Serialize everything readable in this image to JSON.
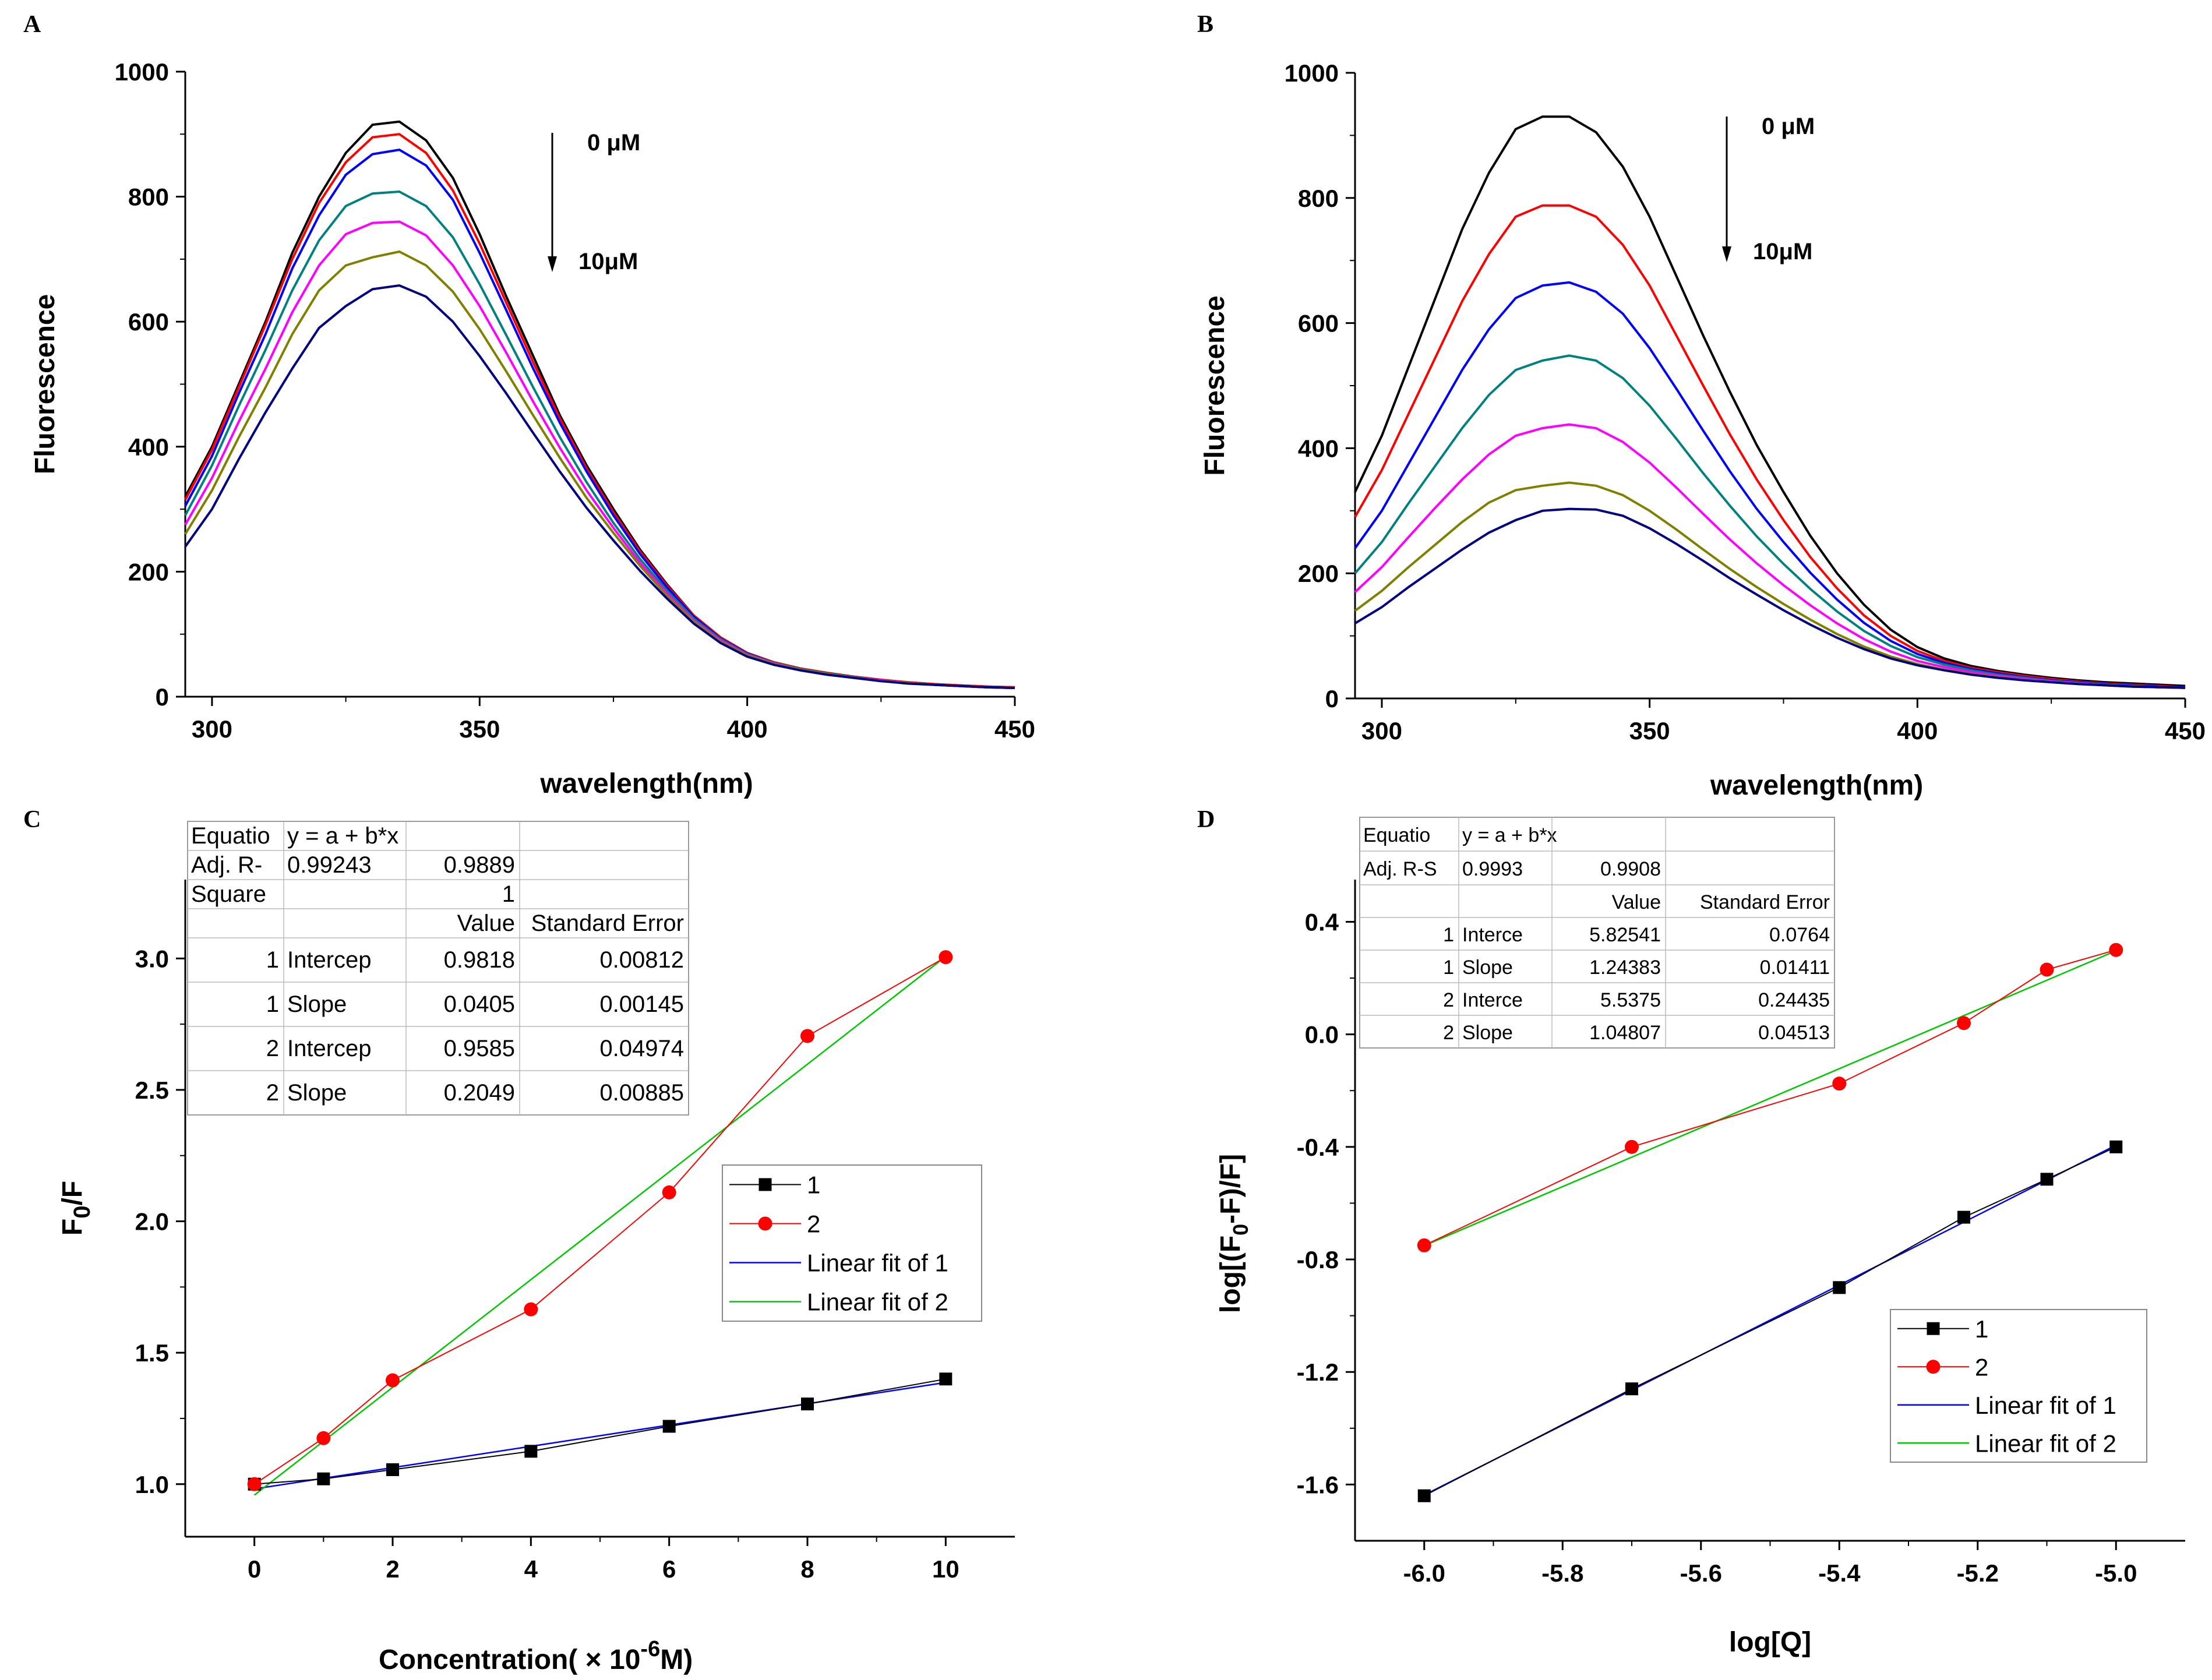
{
  "chart_data": [
    {
      "panel": "A",
      "type": "line",
      "xlabel": "wavelength(nm)",
      "ylabel": "Fluorescence",
      "xlim": [
        295,
        450
      ],
      "ylim": [
        0,
        1000
      ],
      "x_ticks": [
        "300",
        "350",
        "400",
        "450"
      ],
      "y_ticks": [
        "0",
        "200",
        "400",
        "600",
        "800",
        "1000"
      ],
      "annotations": [
        "0 μM",
        "10μM"
      ],
      "x": [
        295,
        300,
        305,
        310,
        315,
        320,
        325,
        330,
        335,
        340,
        345,
        350,
        355,
        360,
        365,
        370,
        375,
        380,
        385,
        390,
        395,
        400,
        405,
        410,
        415,
        420,
        425,
        430,
        435,
        440,
        445,
        450
      ],
      "series": [
        {
          "color": "#000000",
          "values": [
            320,
            400,
            500,
            600,
            710,
            800,
            870,
            915,
            920,
            890,
            830,
            740,
            640,
            545,
            450,
            370,
            300,
            235,
            180,
            130,
            95,
            70,
            55,
            45,
            38,
            32,
            27,
            23,
            20,
            18,
            16,
            15
          ]
        },
        {
          "color": "#ff0000",
          "values": [
            315,
            395,
            495,
            595,
            700,
            790,
            855,
            895,
            900,
            870,
            810,
            725,
            630,
            535,
            445,
            365,
            295,
            232,
            178,
            130,
            95,
            70,
            55,
            45,
            38,
            32,
            27,
            23,
            20,
            18,
            16,
            15
          ]
        },
        {
          "color": "#0000ff",
          "values": [
            305,
            385,
            485,
            580,
            685,
            770,
            835,
            868,
            875,
            850,
            795,
            710,
            618,
            525,
            438,
            360,
            290,
            228,
            175,
            128,
            93,
            69,
            54,
            44,
            37,
            31,
            26,
            22,
            19,
            17,
            15,
            14
          ]
        },
        {
          "color": "#008080",
          "values": [
            290,
            370,
            465,
            555,
            650,
            730,
            785,
            805,
            808,
            785,
            735,
            660,
            578,
            495,
            415,
            343,
            278,
            220,
            170,
            125,
            92,
            68,
            54,
            44,
            37,
            31,
            26,
            22,
            19,
            17,
            15,
            14
          ]
        },
        {
          "color": "#ff00ff",
          "values": [
            275,
            350,
            440,
            525,
            615,
            690,
            740,
            758,
            760,
            738,
            690,
            625,
            550,
            472,
            398,
            330,
            270,
            214,
            166,
            122,
            90,
            67,
            53,
            43,
            36,
            30,
            26,
            22,
            19,
            17,
            15,
            14
          ]
        },
        {
          "color": "#808000",
          "values": [
            260,
            330,
            415,
            495,
            580,
            650,
            690,
            703,
            712,
            690,
            648,
            588,
            520,
            450,
            382,
            318,
            262,
            209,
            162,
            120,
            88,
            66,
            52,
            43,
            36,
            30,
            25,
            22,
            19,
            17,
            15,
            14
          ]
        },
        {
          "color": "#000080",
          "values": [
            240,
            300,
            380,
            455,
            525,
            590,
            625,
            652,
            658,
            640,
            600,
            545,
            485,
            422,
            360,
            302,
            250,
            201,
            157,
            117,
            86,
            64,
            51,
            42,
            35,
            30,
            25,
            21,
            19,
            17,
            15,
            14
          ]
        }
      ]
    },
    {
      "panel": "B",
      "type": "line",
      "xlabel": "wavelength(nm)",
      "ylabel": "Fluorescence",
      "xlim": [
        295,
        450
      ],
      "ylim": [
        0,
        1000
      ],
      "x_ticks": [
        "300",
        "350",
        "400",
        "450"
      ],
      "y_ticks": [
        "0",
        "200",
        "400",
        "600",
        "800",
        "1000"
      ],
      "annotations": [
        "0 μM",
        "10μM"
      ],
      "x": [
        295,
        300,
        305,
        310,
        315,
        320,
        325,
        330,
        335,
        340,
        345,
        350,
        355,
        360,
        365,
        370,
        375,
        380,
        385,
        390,
        395,
        400,
        405,
        410,
        415,
        420,
        425,
        430,
        435,
        440,
        445,
        450
      ],
      "series": [
        {
          "color": "#000000",
          "values": [
            330,
            420,
            530,
            640,
            750,
            840,
            910,
            930,
            930,
            905,
            850,
            770,
            675,
            580,
            490,
            405,
            330,
            260,
            200,
            150,
            110,
            82,
            64,
            52,
            44,
            38,
            33,
            29,
            26,
            24,
            22,
            20
          ]
        },
        {
          "color": "#ff0000",
          "values": [
            290,
            365,
            455,
            545,
            635,
            710,
            770,
            788,
            788,
            770,
            725,
            660,
            580,
            500,
            422,
            350,
            285,
            226,
            176,
            133,
            100,
            76,
            60,
            49,
            42,
            36,
            31,
            27,
            24,
            22,
            20,
            18
          ]
        },
        {
          "color": "#0000ff",
          "values": [
            240,
            300,
            375,
            450,
            525,
            590,
            640,
            660,
            665,
            650,
            615,
            560,
            495,
            428,
            363,
            303,
            250,
            201,
            158,
            121,
            92,
            71,
            57,
            47,
            40,
            34,
            29,
            26,
            23,
            21,
            19,
            18
          ]
        },
        {
          "color": "#008080",
          "values": [
            200,
            250,
            312,
            372,
            432,
            485,
            525,
            540,
            548,
            540,
            512,
            468,
            415,
            360,
            308,
            259,
            215,
            175,
            139,
            108,
            84,
            66,
            54,
            45,
            38,
            33,
            28,
            25,
            22,
            20,
            18,
            17
          ]
        },
        {
          "color": "#ff00ff",
          "values": [
            170,
            210,
            258,
            305,
            350,
            390,
            420,
            432,
            438,
            432,
            410,
            377,
            337,
            295,
            254,
            216,
            181,
            149,
            120,
            95,
            75,
            60,
            50,
            42,
            36,
            31,
            27,
            24,
            21,
            19,
            18,
            17
          ]
        },
        {
          "color": "#808000",
          "values": [
            140,
            172,
            210,
            246,
            282,
            313,
            333,
            340,
            345,
            340,
            325,
            300,
            270,
            238,
            207,
            178,
            151,
            126,
            103,
            83,
            67,
            55,
            46,
            39,
            34,
            29,
            26,
            23,
            21,
            19,
            18,
            17
          ]
        },
        {
          "color": "#000080",
          "values": [
            120,
            146,
            178,
            208,
            238,
            265,
            285,
            300,
            303,
            302,
            292,
            272,
            247,
            220,
            192,
            166,
            141,
            118,
            97,
            79,
            64,
            53,
            45,
            38,
            33,
            29,
            26,
            23,
            21,
            19,
            18,
            17
          ]
        }
      ]
    },
    {
      "panel": "C",
      "type": "scatter",
      "xlabel": "Concentration( × 10",
      "xlabel_sup": "-6",
      "xlabel_tail": "M)",
      "ylabel": "F",
      "ylabel_sub": "0",
      "ylabel_tail": "/F",
      "xlim": [
        -1,
        11
      ],
      "ylim": [
        0.8,
        3.3
      ],
      "x_ticks": [
        "0",
        "2",
        "4",
        "6",
        "8",
        "10"
      ],
      "y_ticks": [
        "1.0",
        "1.5",
        "2.0",
        "2.5",
        "3.0"
      ],
      "legend": [
        "1",
        "2",
        "Linear fit of 1",
        "Linear fit of 2"
      ],
      "series": [
        {
          "name": "1",
          "color": "#000000",
          "marker": "square",
          "x": [
            0,
            1,
            2,
            4,
            6,
            8,
            10
          ],
          "y": [
            1.0,
            1.02,
            1.055,
            1.125,
            1.22,
            1.305,
            1.4
          ]
        },
        {
          "name": "2",
          "color": "#ff0000",
          "marker": "circle",
          "x": [
            0,
            1,
            2,
            4,
            6,
            8,
            10
          ],
          "y": [
            1.0,
            1.175,
            1.395,
            1.665,
            2.11,
            2.705,
            3.005
          ]
        }
      ],
      "fits": [
        {
          "name": "Linear fit of 1",
          "color": "#0000ff",
          "intercept": 0.9818,
          "slope": 0.0405,
          "xrange": [
            0,
            10
          ]
        },
        {
          "name": "Linear fit of 2",
          "color": "#00c800",
          "intercept": 0.9585,
          "slope": 0.2049,
          "xrange": [
            0,
            10
          ]
        }
      ],
      "table": {
        "rows": [
          [
            "Equatio",
            "y = a + b*x",
            "",
            ""
          ],
          [
            "Adj. R-",
            "0.99243",
            "0.9889",
            ""
          ],
          [
            "Square",
            "",
            "1",
            ""
          ],
          [
            "",
            "",
            "Value",
            "Standard Error"
          ],
          [
            "1",
            "Intercep",
            "0.9818",
            "0.00812"
          ],
          [
            "1",
            "Slope",
            "0.0405",
            "0.00145"
          ],
          [
            "2",
            "Intercep",
            "0.9585",
            "0.04974"
          ],
          [
            "2",
            "Slope",
            "0.2049",
            "0.00885"
          ]
        ]
      }
    },
    {
      "panel": "D",
      "type": "scatter",
      "xlabel": "log[Q]",
      "ylabel": "log[(F",
      "ylabel_sub": "0",
      "ylabel_tail": "-F)/F]",
      "xlim": [
        -6.1,
        -4.9
      ],
      "ylim": [
        -1.8,
        0.55
      ],
      "x_ticks": [
        "-6.0",
        "-5.8",
        "-5.6",
        "-5.4",
        "-5.2",
        "-5.0"
      ],
      "y_ticks": [
        "-1.6",
        "-1.2",
        "-0.8",
        "-0.4",
        "0.0",
        "0.4"
      ],
      "legend": [
        "1",
        "2",
        "Linear fit of 1",
        "Linear fit of 2"
      ],
      "series": [
        {
          "name": "1",
          "color": "#000000",
          "marker": "square",
          "x": [
            -6.0,
            -5.7,
            -5.4,
            -5.22,
            -5.1,
            -5.0
          ],
          "y": [
            -1.64,
            -1.26,
            -0.9,
            -0.65,
            -0.515,
            -0.4
          ]
        },
        {
          "name": "2",
          "color": "#ff0000",
          "marker": "circle",
          "x": [
            -6.0,
            -5.7,
            -5.4,
            -5.22,
            -5.1,
            -5.0
          ],
          "y": [
            -0.75,
            -0.4,
            -0.175,
            0.04,
            0.23,
            0.3
          ]
        }
      ],
      "fits": [
        {
          "name": "Linear fit of 1",
          "color": "#0000ff",
          "intercept": 5.82541,
          "slope": 1.24383,
          "xrange": [
            -6.0,
            -5.0
          ]
        },
        {
          "name": "Linear fit of 2",
          "color": "#00c800",
          "intercept": 5.5375,
          "slope": 1.04807,
          "xrange": [
            -6.0,
            -5.0
          ]
        }
      ],
      "table": {
        "rows": [
          [
            "Equatio",
            "y = a + b*x",
            "",
            ""
          ],
          [
            "Adj. R-S",
            "0.9993",
            "0.9908",
            ""
          ],
          [
            "",
            "",
            "Value",
            "Standard Error"
          ],
          [
            "1",
            "Interce",
            "5.82541",
            "0.0764"
          ],
          [
            "1",
            "Slope",
            "1.24383",
            "0.01411"
          ],
          [
            "2",
            "Interce",
            "5.5375",
            "0.24435"
          ],
          [
            "2",
            "Slope",
            "1.04807",
            "0.04513"
          ]
        ]
      }
    }
  ]
}
